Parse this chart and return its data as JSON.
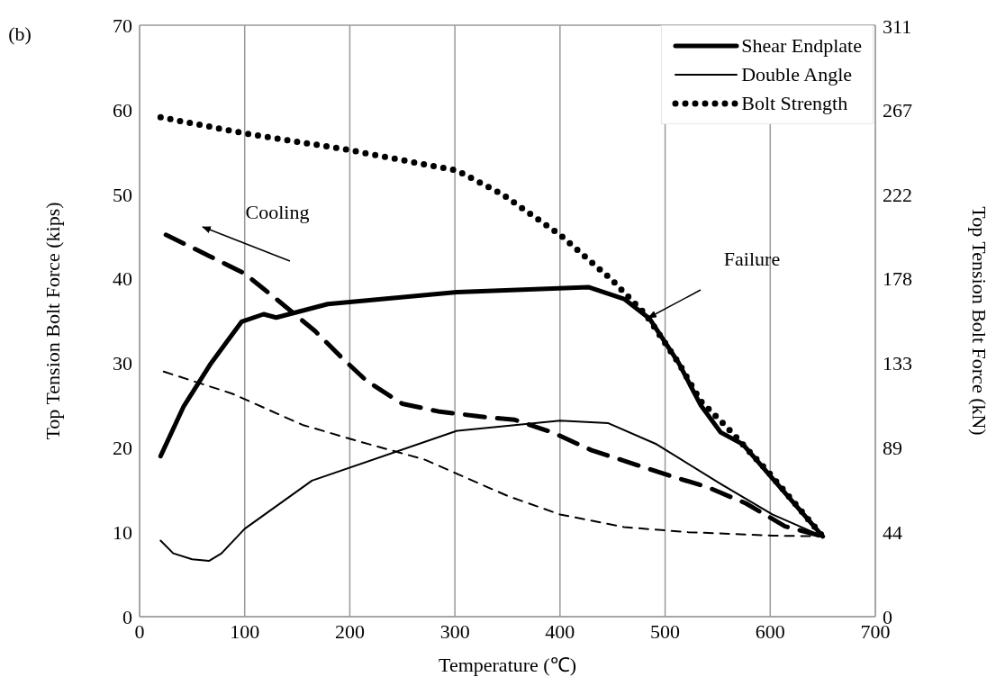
{
  "chart_data": {
    "type": "line",
    "xlabel": "Temperature (℃)",
    "ylabel": "Top Tension Bolt Force (kips)",
    "y2label": "Top Tension Bolt Force (kN)",
    "xlim": [
      0,
      700
    ],
    "xticks": [
      0,
      100,
      200,
      300,
      400,
      500,
      600,
      700
    ],
    "ylim": [
      0,
      70
    ],
    "yticks": [
      0,
      10,
      20,
      30,
      40,
      50,
      60,
      70
    ],
    "y2lim": [
      0,
      311.38
    ],
    "y2ticks": [
      0,
      {
        "value": 44.48,
        "label": "44"
      },
      {
        "value": 88.96,
        "label": "89"
      },
      {
        "value": 133.45,
        "label": "133"
      },
      {
        "value": 177.93,
        "label": "178"
      },
      {
        "value": 222.41,
        "label": "222"
      },
      {
        "value": 266.89,
        "label": "267"
      },
      311
    ],
    "grid": true,
    "legend": "top right",
    "marker": "none",
    "annotations": [
      "(b)",
      "Cooling",
      "Failure"
    ],
    "series": [
      {
        "name": "Shear Endplate",
        "color": "#000000",
        "line_style": "solid",
        "x": [
          20,
          42,
          68,
          97,
          118,
          130,
          179,
          302,
          427,
          461,
          485,
          513,
          534,
          553,
          574,
          650
        ],
        "values": [
          19,
          24.9,
          30,
          34.9,
          35.8,
          35.4,
          37,
          38.4,
          39,
          37.6,
          35.3,
          30,
          25,
          21.8,
          20.4,
          9.5
        ]
      },
      {
        "name": "Double Angle",
        "color": "#000000",
        "line_style": "solid",
        "x": [
          20,
          32,
          50,
          66,
          78,
          100,
          164,
          302,
          400,
          446,
          492,
          553,
          602,
          650
        ],
        "values": [
          9,
          7.5,
          6.8,
          6.6,
          7.5,
          10.4,
          16.1,
          22,
          23.2,
          22.9,
          20.4,
          15.7,
          12.1,
          9.5
        ]
      },
      {
        "name": "Bolt Strength",
        "color": "#000000",
        "line_style": "dotted",
        "x": [
          20,
          100,
          196,
          302,
          345,
          400,
          449,
          482,
          513,
          534,
          559,
          599,
          650
        ],
        "values": [
          59.1,
          57.2,
          55.3,
          52.8,
          50,
          45.2,
          39.9,
          35.7,
          30,
          25.5,
          22.4,
          17,
          9.5
        ]
      },
      {
        "color": "#000000",
        "line_style": "dashed",
        "x": [
          25,
          66,
          100,
          130,
          167,
          192,
          216,
          250,
          284,
          323,
          357,
          393,
          430,
          504,
          541,
          577,
          614,
          650
        ],
        "values": [
          45.2,
          42.7,
          40.6,
          37.6,
          33.8,
          30.7,
          27.9,
          25.2,
          24.3,
          23.7,
          23.3,
          21.8,
          19.7,
          16.7,
          15.3,
          13.4,
          10.7,
          9.5
        ]
      },
      {
        "color": "#000000",
        "line_style": "dashed",
        "x": [
          23,
          88,
          155,
          210,
          271,
          350,
          400,
          461,
          522,
          602,
          650
        ],
        "values": [
          29,
          26.4,
          22.7,
          20.7,
          18.6,
          14.3,
          12.1,
          10.6,
          10,
          9.6,
          9.5
        ]
      }
    ]
  }
}
